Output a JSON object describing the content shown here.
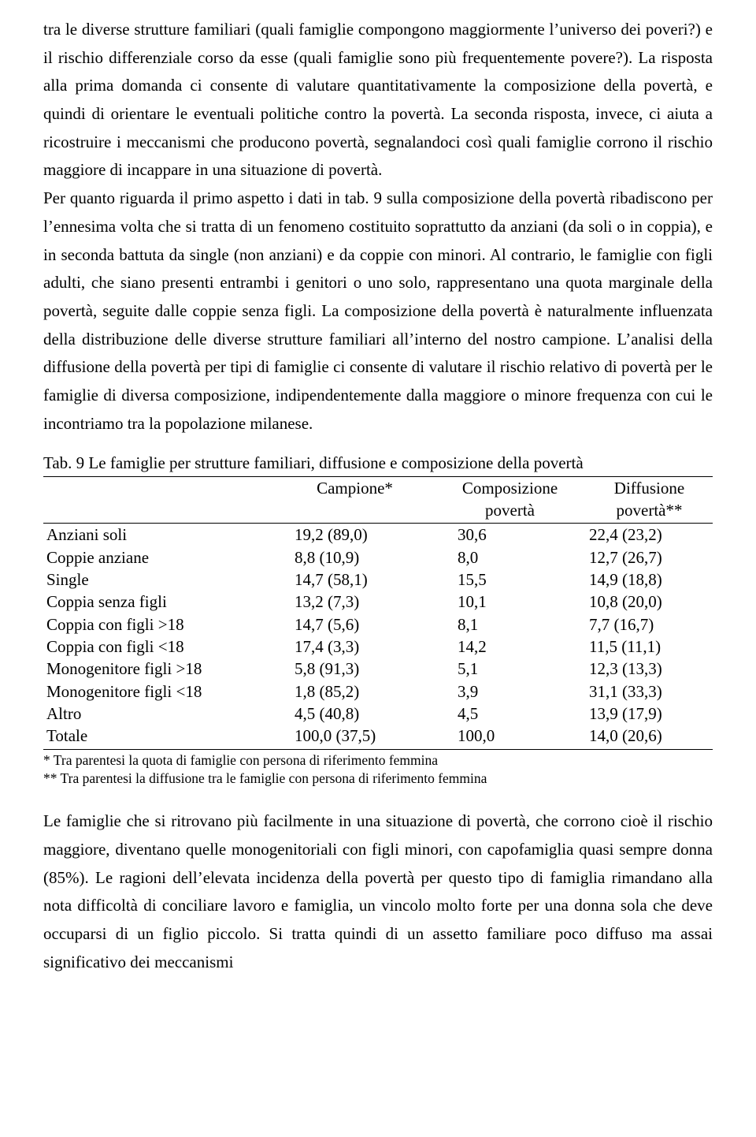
{
  "text": {
    "para1": "tra le diverse strutture familiari (quali famiglie compongono maggiormente l’universo dei poveri?) e il rischio differenziale corso da esse (quali famiglie sono più frequentemente povere?). La risposta alla prima domanda ci consente di valutare quantitativamente la composizione della povertà, e quindi di orientare le eventuali politiche contro la povertà. La seconda risposta, invece, ci aiuta a ricostruire i meccanismi che producono povertà, segnalandoci così quali famiglie corrono il rischio maggiore di incappare in una situazione di povertà.",
    "para2": "Per quanto riguarda il primo aspetto i dati in tab. 9 sulla composizione della povertà ribadiscono per l’ennesima volta che si tratta di un fenomeno costituito soprattutto da anziani (da soli o in coppia), e in seconda battuta da single (non anziani) e da coppie con minori. Al contrario, le famiglie con figli adulti, che siano presenti entrambi i genitori o uno solo, rappresentano una quota marginale della povertà, seguite dalle coppie senza figli. La composizione della povertà è naturalmente influenzata della distribuzione delle diverse strutture familiari all’interno del nostro campione. L’analisi della diffusione della povertà  per tipi di famiglie ci consente di valutare il rischio relativo di povertà per le famiglie di diversa composizione, indipendentemente dalla maggiore o minore frequenza con cui le incontriamo tra la popolazione milanese.",
    "para3": "Le famiglie che si ritrovano più facilmente in una situazione di povertà, che corrono cioè il rischio maggiore, diventano quelle monogenitoriali con figli minori, con capofamiglia quasi sempre donna (85%). Le ragioni dell’elevata incidenza della povertà per questo tipo di famiglia rimandano alla nota difficoltà di conciliare lavoro e famiglia, un vincolo molto forte per una donna sola che deve occuparsi di un figlio piccolo. Si tratta quindi di un assetto familiare poco diffuso ma assai significativo dei meccanismi"
  },
  "table": {
    "title": "Tab. 9 Le famiglie per strutture familiari, diffusione e composizione della povertà",
    "headers": {
      "h_label": "",
      "h_camp": "Campione*",
      "h_comp_l1": "Composizione",
      "h_comp_l2": "povertà",
      "h_diff_l1": "Diffusione",
      "h_diff_l2": "povertà**"
    },
    "rows": [
      {
        "label": "Anziani soli",
        "camp": "19,2 (89,0)",
        "comp": "30,6",
        "diff": "22,4 (23,2)"
      },
      {
        "label": "Coppie anziane",
        "camp": "8,8 (10,9)",
        "comp": "8,0",
        "diff": "12,7 (26,7)"
      },
      {
        "label": "Single",
        "camp": "14,7 (58,1)",
        "comp": "15,5",
        "diff": "14,9 (18,8)"
      },
      {
        "label": "Coppia senza figli",
        "camp": "13,2 (7,3)",
        "comp": "10,1",
        "diff": "10,8 (20,0)"
      },
      {
        "label": "Coppia con figli >18",
        "camp": "14,7 (5,6)",
        "comp": "8,1",
        "diff": "  7,7 (16,7)"
      },
      {
        "label": "Coppia con figli <18",
        "camp": "17,4 (3,3)",
        "comp": "14,2",
        "diff": "11,5 (11,1)"
      },
      {
        "label": "Monogenitore figli >18",
        "camp": "5,8 (91,3)",
        "comp": "5,1",
        "diff": "12,3 (13,3)"
      },
      {
        "label": "Monogenitore figli <18",
        "camp": "1,8 (85,2)",
        "comp": "3,9",
        "diff": "31,1 (33,3)"
      },
      {
        "label": "Altro",
        "camp": "4,5 (40,8)",
        "comp": "4,5",
        "diff": "13,9 (17,9)"
      },
      {
        "label": "Totale",
        "camp": "100,0 (37,5)",
        "comp": "100,0",
        "diff": "14,0 (20,6)"
      }
    ],
    "footnotes": {
      "f1": "* Tra parentesi la quota di famiglie con persona di riferimento femmina",
      "f2": "** Tra parentesi la diffusione tra le famiglie con persona di riferimento femmina"
    }
  }
}
